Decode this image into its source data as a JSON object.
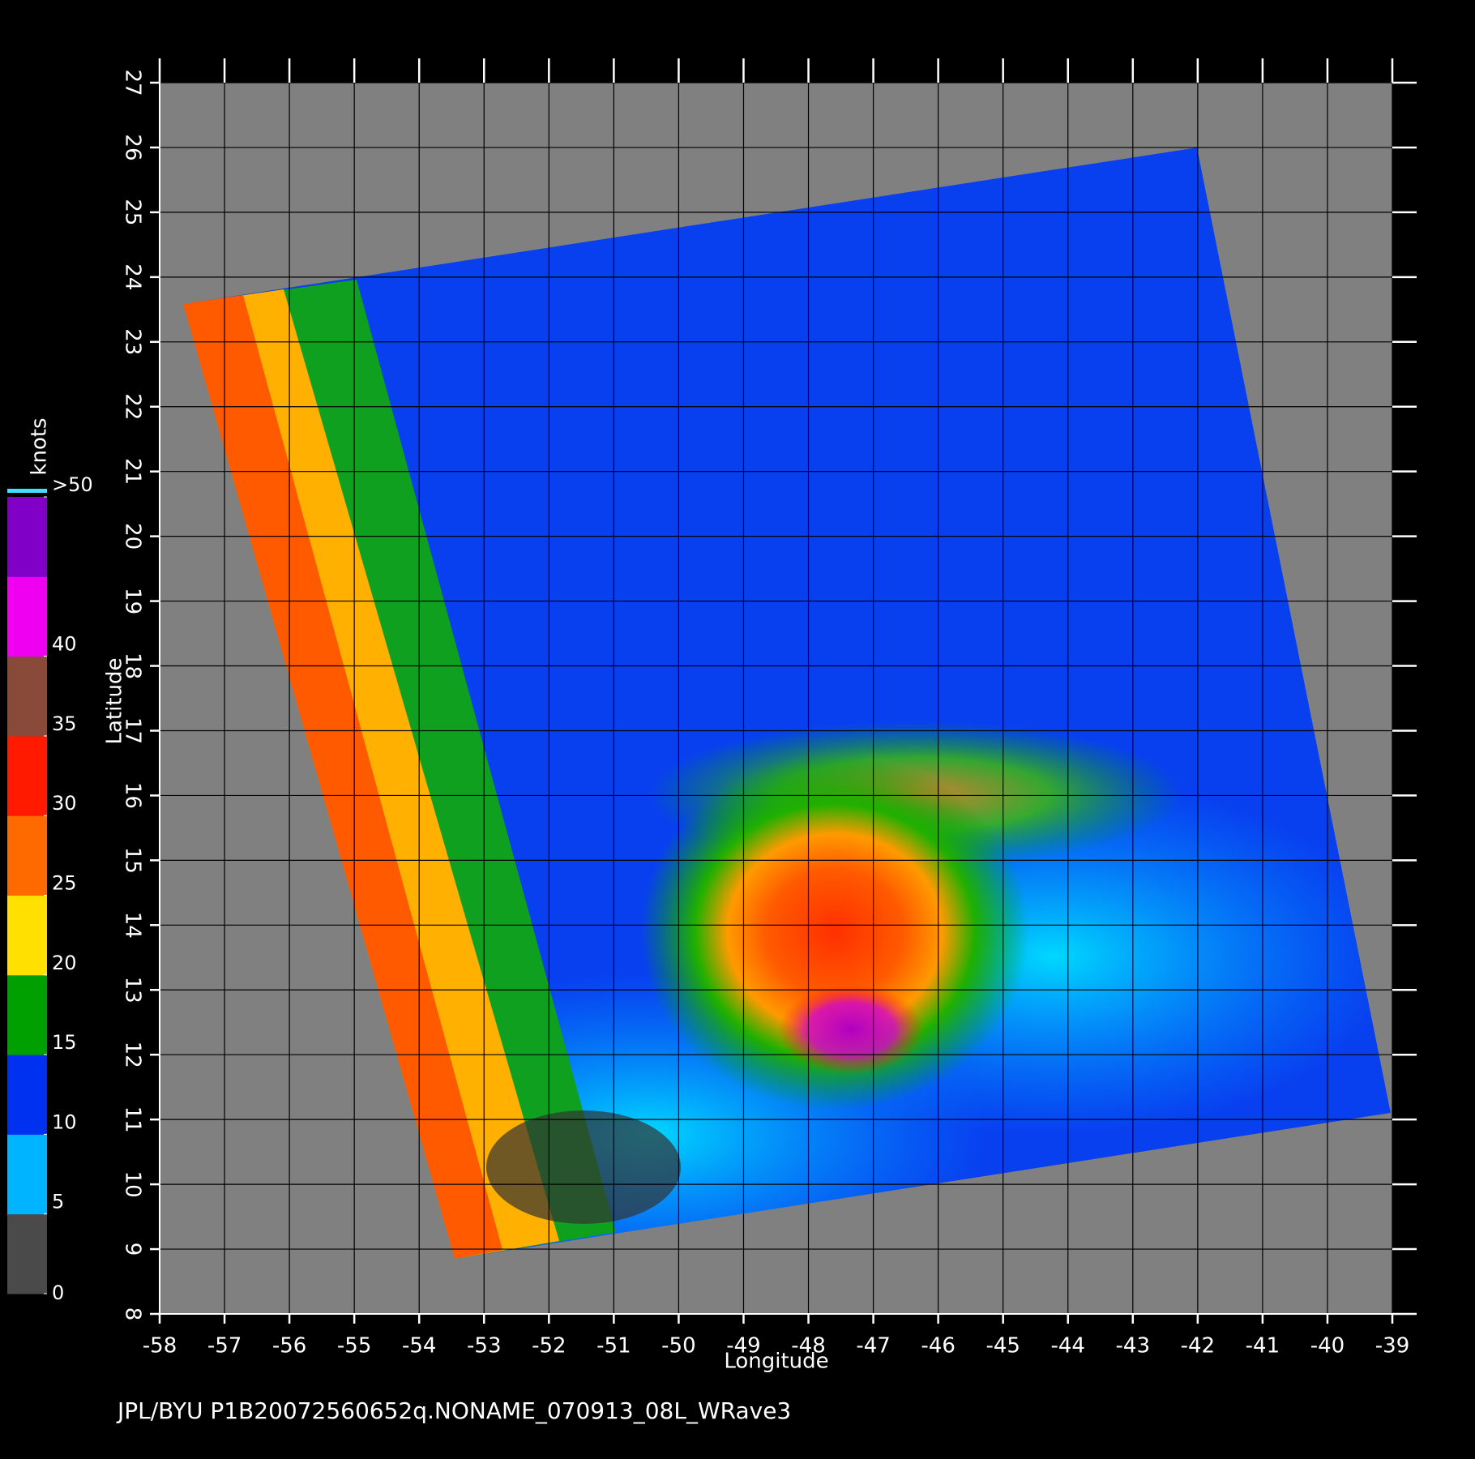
{
  "chart_data": {
    "type": "map",
    "xlabel": "Longitude",
    "ylabel": "Latitude",
    "footer": "JPL/BYU  P1B20072560652q.NONAME_070913_08L_WRave3",
    "xlim": [
      -58,
      -39
    ],
    "ylim": [
      8,
      27
    ],
    "xticks": [
      -58,
      -57,
      -56,
      -55,
      -54,
      -53,
      -52,
      -51,
      -50,
      -49,
      -48,
      -47,
      -46,
      -45,
      -44,
      -43,
      -42,
      -41,
      -40,
      -39
    ],
    "yticks": [
      8,
      9,
      10,
      11,
      12,
      13,
      14,
      15,
      16,
      17,
      18,
      19,
      20,
      21,
      22,
      23,
      24,
      25,
      26,
      27
    ],
    "grid": true,
    "colorbar": {
      "label": "knots",
      "lim": [
        0,
        50
      ],
      "ticks": [
        0,
        5,
        10,
        15,
        20,
        25,
        30,
        35,
        40,
        {
          "value": 50,
          "label": ">50"
        }
      ],
      "colors": [
        "#4a4a4a",
        "#00b4ff",
        "#0030f0",
        "#00a000",
        "#ffe000",
        "#ff6a00",
        "#ff1a00",
        "#8a4a3a",
        "#f000f0",
        "#8000c8"
      ]
    }
  }
}
